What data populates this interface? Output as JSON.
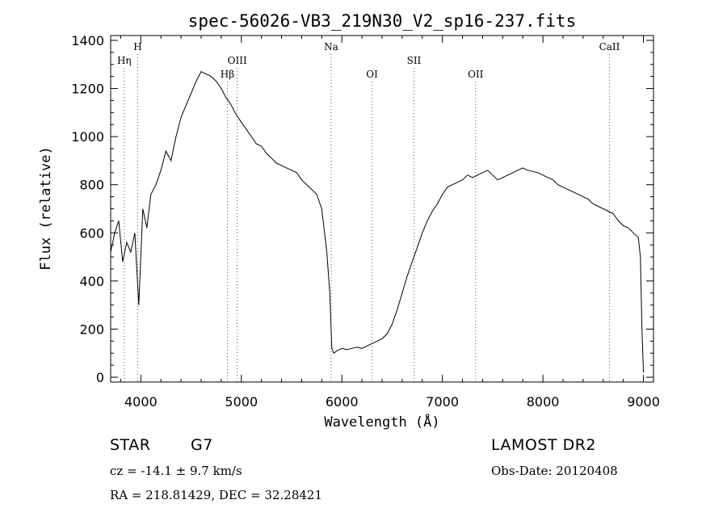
{
  "chart_data": {
    "type": "line",
    "title": "spec-56026-VB3_219N30_V2_sp16-237.fits",
    "xlabel": "Wavelength (Å)",
    "ylabel": "Flux (relative)",
    "xlim": [
      3700,
      9100
    ],
    "ylim": [
      -20,
      1420
    ],
    "xticks": [
      4000,
      5000,
      6000,
      7000,
      8000,
      9000
    ],
    "yticks": [
      0,
      200,
      400,
      600,
      800,
      1000,
      1200,
      1400
    ],
    "grid": false,
    "series": [
      {
        "x": [
          3700,
          3740,
          3780,
          3820,
          3860,
          3900,
          3940,
          3980,
          4020,
          4060,
          4100,
          4150,
          4200,
          4250,
          4300,
          4350,
          4400,
          4450,
          4500,
          4550,
          4600,
          4650,
          4700,
          4750,
          4800,
          4850,
          4870,
          4900,
          4950,
          5000,
          5050,
          5100,
          5150,
          5200,
          5250,
          5300,
          5350,
          5400,
          5450,
          5500,
          5550,
          5600,
          5650,
          5700,
          5750,
          5800,
          5850,
          5880,
          5900,
          5920,
          5950,
          6000,
          6050,
          6100,
          6150,
          6200,
          6250,
          6300,
          6350,
          6400,
          6450,
          6500,
          6550,
          6600,
          6650,
          6700,
          6750,
          6800,
          6850,
          6900,
          6950,
          7000,
          7050,
          7100,
          7150,
          7200,
          7250,
          7300,
          7350,
          7400,
          7450,
          7500,
          7550,
          7600,
          7650,
          7700,
          7750,
          7800,
          7850,
          7900,
          7950,
          8000,
          8050,
          8100,
          8150,
          8200,
          8250,
          8300,
          8350,
          8400,
          8450,
          8500,
          8550,
          8600,
          8650,
          8700,
          8750,
          8800,
          8850,
          8900,
          8950,
          8970,
          8985,
          9000
        ],
        "y": [
          520,
          600,
          650,
          480,
          560,
          520,
          600,
          300,
          700,
          620,
          760,
          800,
          860,
          940,
          900,
          1000,
          1080,
          1130,
          1180,
          1230,
          1270,
          1260,
          1250,
          1230,
          1200,
          1160,
          1150,
          1130,
          1090,
          1060,
          1030,
          1000,
          970,
          960,
          930,
          910,
          890,
          880,
          870,
          860,
          850,
          820,
          800,
          780,
          760,
          700,
          520,
          350,
          120,
          100,
          110,
          120,
          115,
          120,
          125,
          120,
          130,
          140,
          150,
          160,
          180,
          220,
          280,
          350,
          420,
          480,
          540,
          600,
          650,
          690,
          720,
          760,
          790,
          800,
          810,
          820,
          840,
          830,
          840,
          850,
          860,
          840,
          820,
          830,
          840,
          850,
          860,
          870,
          860,
          855,
          850,
          840,
          830,
          820,
          800,
          790,
          780,
          770,
          760,
          750,
          740,
          720,
          710,
          700,
          690,
          680,
          650,
          630,
          620,
          600,
          580,
          500,
          200,
          20
        ]
      }
    ],
    "lines": [
      {
        "label": "Hη",
        "wavelength": 3835,
        "row": 2
      },
      {
        "label": "H",
        "wavelength": 3969,
        "row": 1
      },
      {
        "label": "Hβ",
        "wavelength": 4861,
        "row": 3
      },
      {
        "label": "OIII",
        "wavelength": 4959,
        "row": 2
      },
      {
        "label": "Na",
        "wavelength": 5893,
        "row": 1
      },
      {
        "label": "OI",
        "wavelength": 6300,
        "row": 3
      },
      {
        "label": "SII",
        "wavelength": 6717,
        "row": 2
      },
      {
        "label": "OII",
        "wavelength": 7330,
        "row": 3
      },
      {
        "label": "CaII",
        "wavelength": 8662,
        "row": 1
      }
    ]
  },
  "info": {
    "object_class": "STAR",
    "subclass": "G7",
    "survey": "LAMOST DR2",
    "redshift": "cz = -14.1 ± 9.7 km/s",
    "obs_date": "Obs-Date: 20120408",
    "coords": "RA = 218.81429, DEC =  32.28421"
  }
}
